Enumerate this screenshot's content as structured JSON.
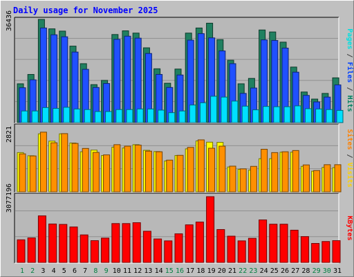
{
  "title": "Daily usage for November 2025",
  "chart_data": {
    "type": "bar",
    "categories": [
      "1",
      "2",
      "3",
      "4",
      "5",
      "6",
      "7",
      "8",
      "9",
      "10",
      "11",
      "12",
      "13",
      "14",
      "15",
      "16",
      "17",
      "18",
      "19",
      "20",
      "21",
      "22",
      "23",
      "24",
      "25",
      "26",
      "27",
      "28",
      "29",
      "30",
      "31"
    ],
    "weekend_days": [
      "1",
      "2",
      "8",
      "9",
      "15",
      "16",
      "22",
      "23",
      "29",
      "30"
    ],
    "panels": [
      {
        "name": "pages-files-hits",
        "ymax_label": "36436",
        "ymax": 36436,
        "right_label": [
          {
            "text": "Pages",
            "color": "#00e0e0"
          },
          {
            "text": " / ",
            "color": "#404040"
          },
          {
            "text": "Files",
            "color": "#0040ff"
          },
          {
            "text": " / ",
            "color": "#404040"
          },
          {
            "text": "Hits",
            "color": "#008060"
          }
        ],
        "series": [
          {
            "name": "Hits",
            "color": "#208060",
            "values": [
              13700,
              17000,
              36436,
              33100,
              32300,
              27000,
              20800,
              13400,
              14900,
              31100,
              32400,
              31600,
              26400,
              19000,
              13900,
              18900,
              31600,
              33400,
              35100,
              29300,
              22000,
              13700,
              15600,
              32700,
              32000,
              28400,
              19600,
              10800,
              8300,
              10300,
              15800
            ]
          },
          {
            "name": "Files",
            "color": "#2050ff",
            "values": [
              12300,
              15100,
              33400,
              31000,
              30300,
              24900,
              18800,
              12400,
              13800,
              29400,
              30500,
              29800,
              24400,
              17000,
              12400,
              16800,
              29100,
              31400,
              29900,
              25300,
              20800,
              10300,
              12200,
              29200,
              29000,
              26300,
              17800,
              9600,
              7300,
              9000,
              13300
            ]
          },
          {
            "name": "Pages",
            "color": "#00e0ff",
            "values": [
              4100,
              4100,
              5300,
              5000,
              5400,
              4800,
              4600,
              3900,
              3900,
              4600,
              4600,
              4800,
              4800,
              4400,
              3500,
              4100,
              6200,
              7000,
              9300,
              9000,
              7600,
              5800,
              4500,
              5700,
              5600,
              5600,
              5900,
              4900,
              4800,
              4600,
              4300
            ]
          }
        ]
      },
      {
        "name": "visits-sites",
        "ymax_label": "2821",
        "ymax": 2821,
        "right_label": [
          {
            "text": "Sites",
            "color": "#ff8000"
          },
          {
            "text": " / ",
            "color": "#404040"
          },
          {
            "text": "Visits",
            "color": "#ffd000"
          }
        ],
        "series": [
          {
            "name": "Visits",
            "color": "#ffff00",
            "values": [
              1880,
              1730,
              2780,
              2430,
              2780,
              2340,
              1920,
              2000,
              1740,
              2140,
              2100,
              2260,
              1990,
              1930,
              1480,
              1740,
              2060,
              2440,
              2380,
              2370,
              1190,
              1080,
              1040,
              1590,
              1590,
              1900,
              1900,
              1220,
              990,
              1170,
              1160
            ]
          },
          {
            "name": "Sites",
            "color": "#ff9000",
            "values": [
              1820,
              1720,
              2860,
              2350,
              2790,
              2320,
              2080,
              1890,
              1770,
              2260,
              2190,
              2240,
              1950,
              1920,
              1520,
              1750,
              2130,
              2490,
              2090,
              2190,
              1230,
              1100,
              1220,
              2040,
              1880,
              1920,
              1980,
              1290,
              1020,
              1300,
              1300
            ]
          }
        ]
      },
      {
        "name": "kbytes",
        "ymax_label": "3077196",
        "ymax": 3077196,
        "right_label": [
          {
            "text": "KBytes",
            "color": "#ff0000"
          }
        ],
        "series": [
          {
            "name": "KBytes",
            "color": "#ff0000",
            "values": [
              1060000,
              1150000,
              2180000,
              1800000,
              1780000,
              1660000,
              1290000,
              1020000,
              1140000,
              1820000,
              1820000,
              1860000,
              1460000,
              1100000,
              1010000,
              1340000,
              1760000,
              1890000,
              3077196,
              1540000,
              1230000,
              1010000,
              1130000,
              1990000,
              1790000,
              1790000,
              1510000,
              1210000,
              890000,
              980000,
              1020000
            ]
          }
        ]
      }
    ]
  }
}
